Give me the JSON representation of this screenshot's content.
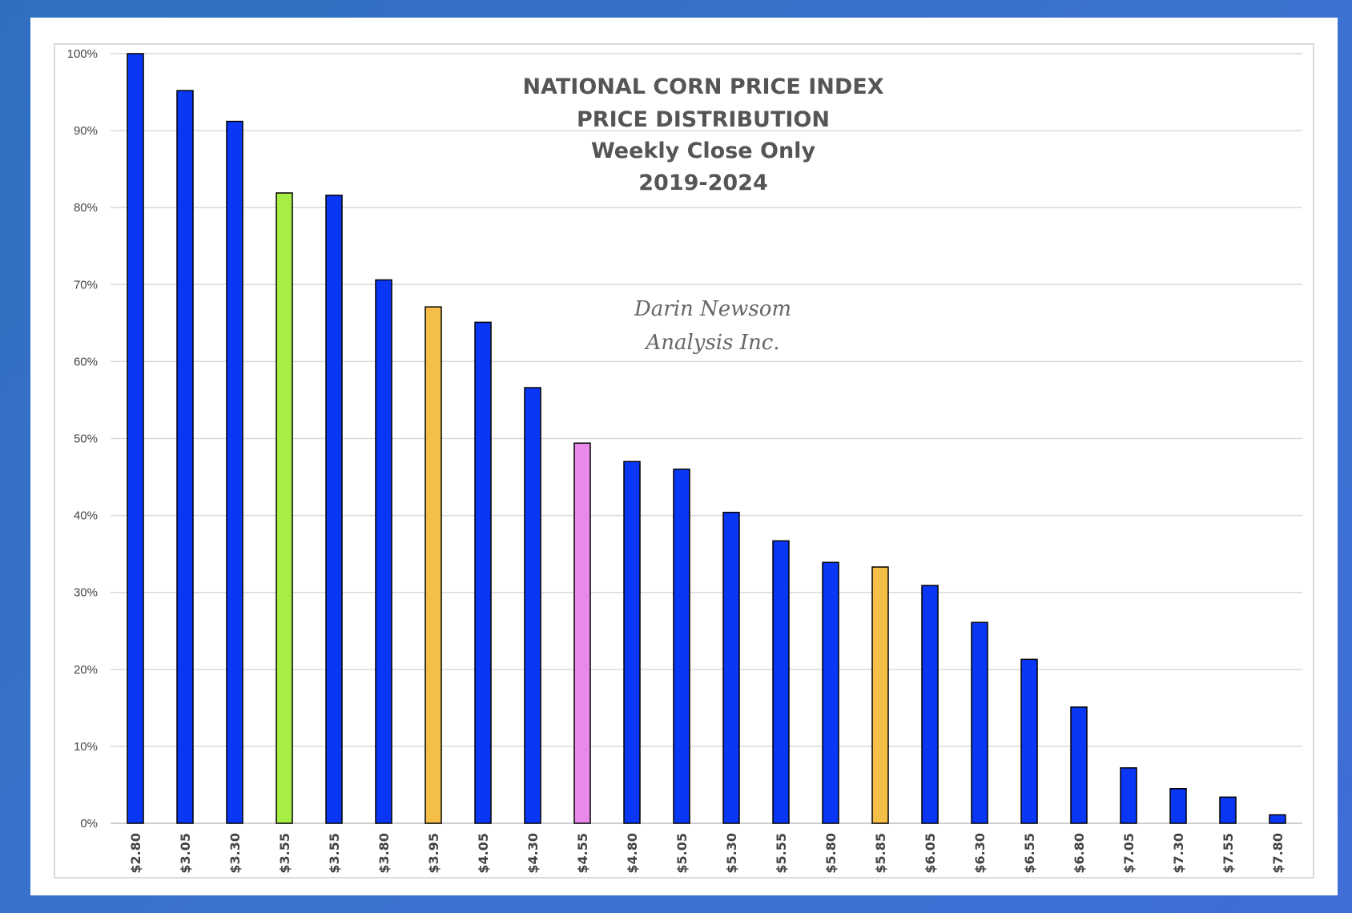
{
  "chart_data": {
    "type": "bar",
    "title_lines": [
      "NATIONAL CORN PRICE INDEX",
      "PRICE DISTRIBUTION",
      "Weekly Close Only",
      "2019-2024"
    ],
    "watermark_lines": [
      "Darin Newsom",
      "Analysis Inc."
    ],
    "xlabel": "",
    "ylabel": "",
    "ylim": [
      0,
      100
    ],
    "y_ticks": [
      0,
      10,
      20,
      30,
      40,
      50,
      60,
      70,
      80,
      90,
      100
    ],
    "y_tick_labels": [
      "0%",
      "10%",
      "20%",
      "30%",
      "40%",
      "50%",
      "60%",
      "70%",
      "80%",
      "90%",
      "100%"
    ],
    "grid": true,
    "categories": [
      "$2.80",
      "$3.05",
      "$3.30",
      "$3.55",
      "$3.55",
      "$3.80",
      "$3.95",
      "$4.05",
      "$4.30",
      "$4.55",
      "$4.80",
      "$5.05",
      "$5.30",
      "$5.55",
      "$5.80",
      "$5.85",
      "$6.05",
      "$6.30",
      "$6.55",
      "$6.80",
      "$7.05",
      "$7.30",
      "$7.55",
      "$7.80"
    ],
    "values": [
      100,
      95.2,
      91.2,
      81.9,
      81.6,
      70.6,
      67.1,
      65.1,
      56.6,
      49.4,
      47.0,
      46.0,
      40.4,
      36.7,
      33.9,
      33.3,
      30.9,
      26.1,
      21.3,
      15.1,
      7.2,
      4.5,
      3.4,
      1.1
    ],
    "bar_colors": [
      "#0a37f5",
      "#0a37f5",
      "#0a37f5",
      "#a6ee44",
      "#0a37f5",
      "#0a37f5",
      "#f4be47",
      "#0a37f5",
      "#0a37f5",
      "#e98aeb",
      "#0a37f5",
      "#0a37f5",
      "#0a37f5",
      "#0a37f5",
      "#0a37f5",
      "#f4be47",
      "#0a37f5",
      "#0a37f5",
      "#0a37f5",
      "#0a37f5",
      "#0a37f5",
      "#0a37f5",
      "#0a37f5",
      "#0a37f5"
    ],
    "legend": "none"
  },
  "colors": {
    "background": "#3a72cf",
    "bar_default": "#0a37f5",
    "gridline": "#d9d9d9",
    "axis_text": "#444444"
  }
}
